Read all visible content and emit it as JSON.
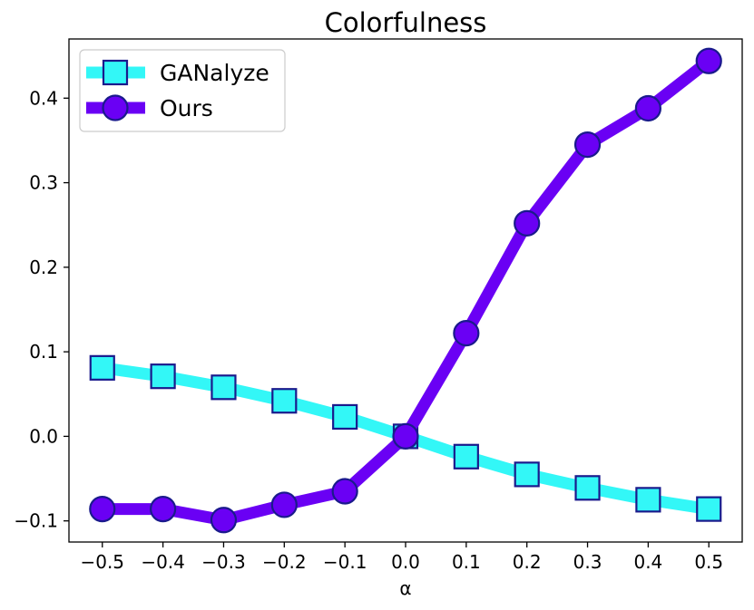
{
  "chart_data": {
    "type": "line",
    "title": "Colorfulness",
    "xlabel": "α",
    "ylabel": "",
    "x": [
      -0.5,
      -0.4,
      -0.3,
      -0.2,
      -0.1,
      0.0,
      0.1,
      0.2,
      0.3,
      0.4,
      0.5
    ],
    "x_tick_labels": [
      "−0.5",
      "−0.4",
      "−0.3",
      "−0.2",
      "−0.1",
      "0.0",
      "0.1",
      "0.2",
      "0.3",
      "0.4",
      "0.5"
    ],
    "y_ticks": [
      -0.1,
      0.0,
      0.1,
      0.2,
      0.3,
      0.4
    ],
    "y_tick_labels": [
      "−0.1",
      "0.0",
      "0.1",
      "0.2",
      "0.3",
      "0.4"
    ],
    "xlim": [
      -0.555,
      0.555
    ],
    "ylim": [
      -0.125,
      0.47
    ],
    "grid": false,
    "legend_position": "top-left",
    "series": [
      {
        "name": "GANalyze",
        "marker": "square",
        "line_color": "#33f7f7",
        "marker_fill": "#33f7f7",
        "marker_edge": "#1a1a8c",
        "values": [
          0.081,
          0.071,
          0.058,
          0.042,
          0.023,
          0.0,
          -0.024,
          -0.045,
          -0.061,
          -0.075,
          -0.086
        ]
      },
      {
        "name": "Ours",
        "marker": "circle",
        "line_color": "#6a00f4",
        "marker_fill": "#6a00f4",
        "marker_edge": "#1a1a8c",
        "values": [
          -0.086,
          -0.086,
          -0.099,
          -0.081,
          -0.065,
          0.0,
          0.122,
          0.252,
          0.345,
          0.388,
          0.444
        ]
      }
    ]
  }
}
